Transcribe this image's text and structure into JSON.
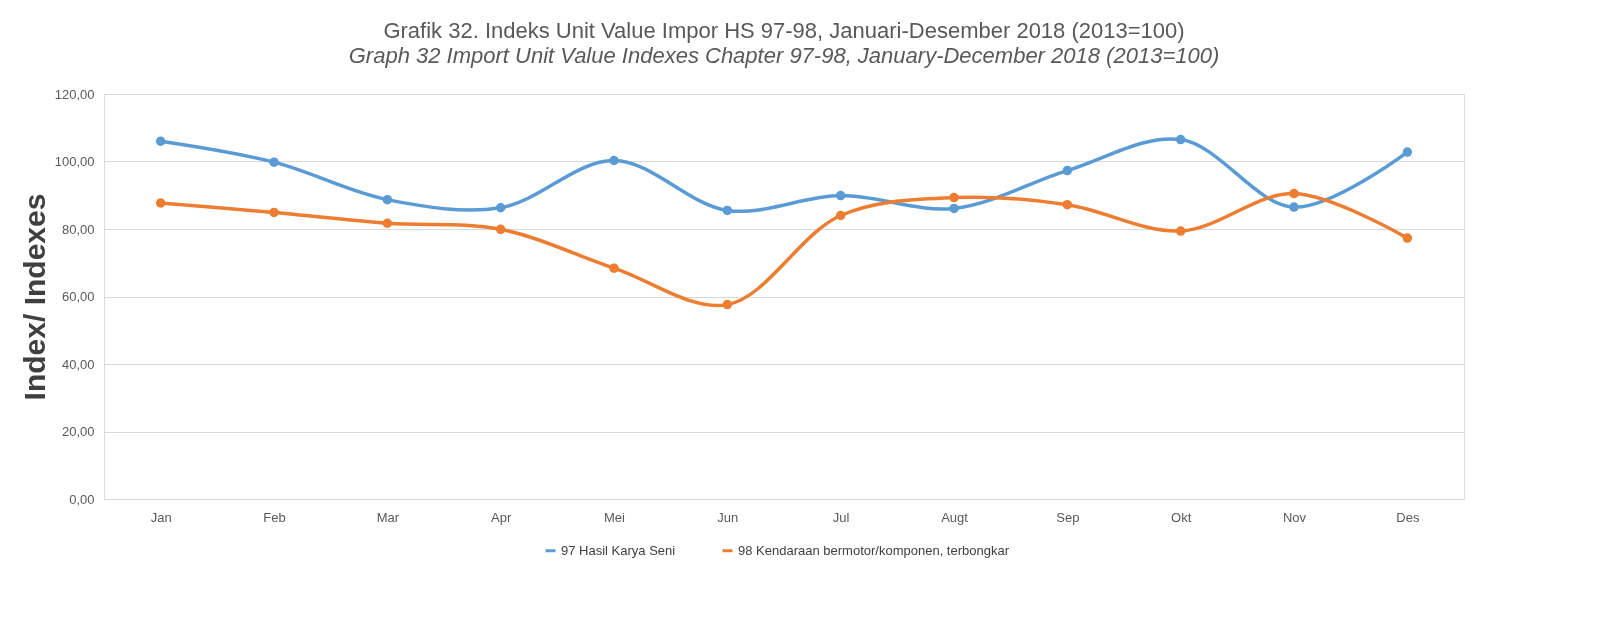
{
  "chart_data": {
    "type": "line",
    "title": "Grafik 32. Indeks Unit Value Impor HS 97-98, Januari-Desember 2018 (2013=100)",
    "subtitle": "Graph 32 Import Unit Value Indexes Chapter 97-98, January-December 2018 (2013=100)",
    "ylabel": "Index/ Indexes",
    "categories": [
      "Jan",
      "Feb",
      "Mar",
      "Apr",
      "Mei",
      "Jun",
      "Jul",
      "Augt",
      "Sep",
      "Okt",
      "Nov",
      "Des"
    ],
    "series": [
      {
        "name": "97 Hasil Karya Seni",
        "color": "#5b9bd5",
        "values": [
          106.0,
          99.8,
          88.7,
          86.3,
          100.3,
          85.5,
          89.9,
          86.1,
          97.3,
          106.5,
          86.5,
          102.8
        ]
      },
      {
        "name": "98 Kendaraan bermotor/komponen, terbongkar",
        "color": "#ed7d31",
        "values": [
          87.7,
          84.9,
          81.7,
          79.9,
          68.4,
          57.6,
          84.0,
          89.3,
          87.2,
          79.4,
          90.5,
          77.3
        ]
      }
    ],
    "ylim": [
      0,
      120
    ],
    "yticks": [
      {
        "value": 0,
        "label": "0,00"
      },
      {
        "value": 20,
        "label": "20,00"
      },
      {
        "value": 40,
        "label": "40,00"
      },
      {
        "value": 60,
        "label": "60,00"
      },
      {
        "value": 80,
        "label": "80,00"
      },
      {
        "value": 100,
        "label": "100,00"
      },
      {
        "value": 120,
        "label": "120,00"
      }
    ],
    "grid": "y",
    "legend": "bottom",
    "marker": "circle",
    "line_style": "solid"
  }
}
